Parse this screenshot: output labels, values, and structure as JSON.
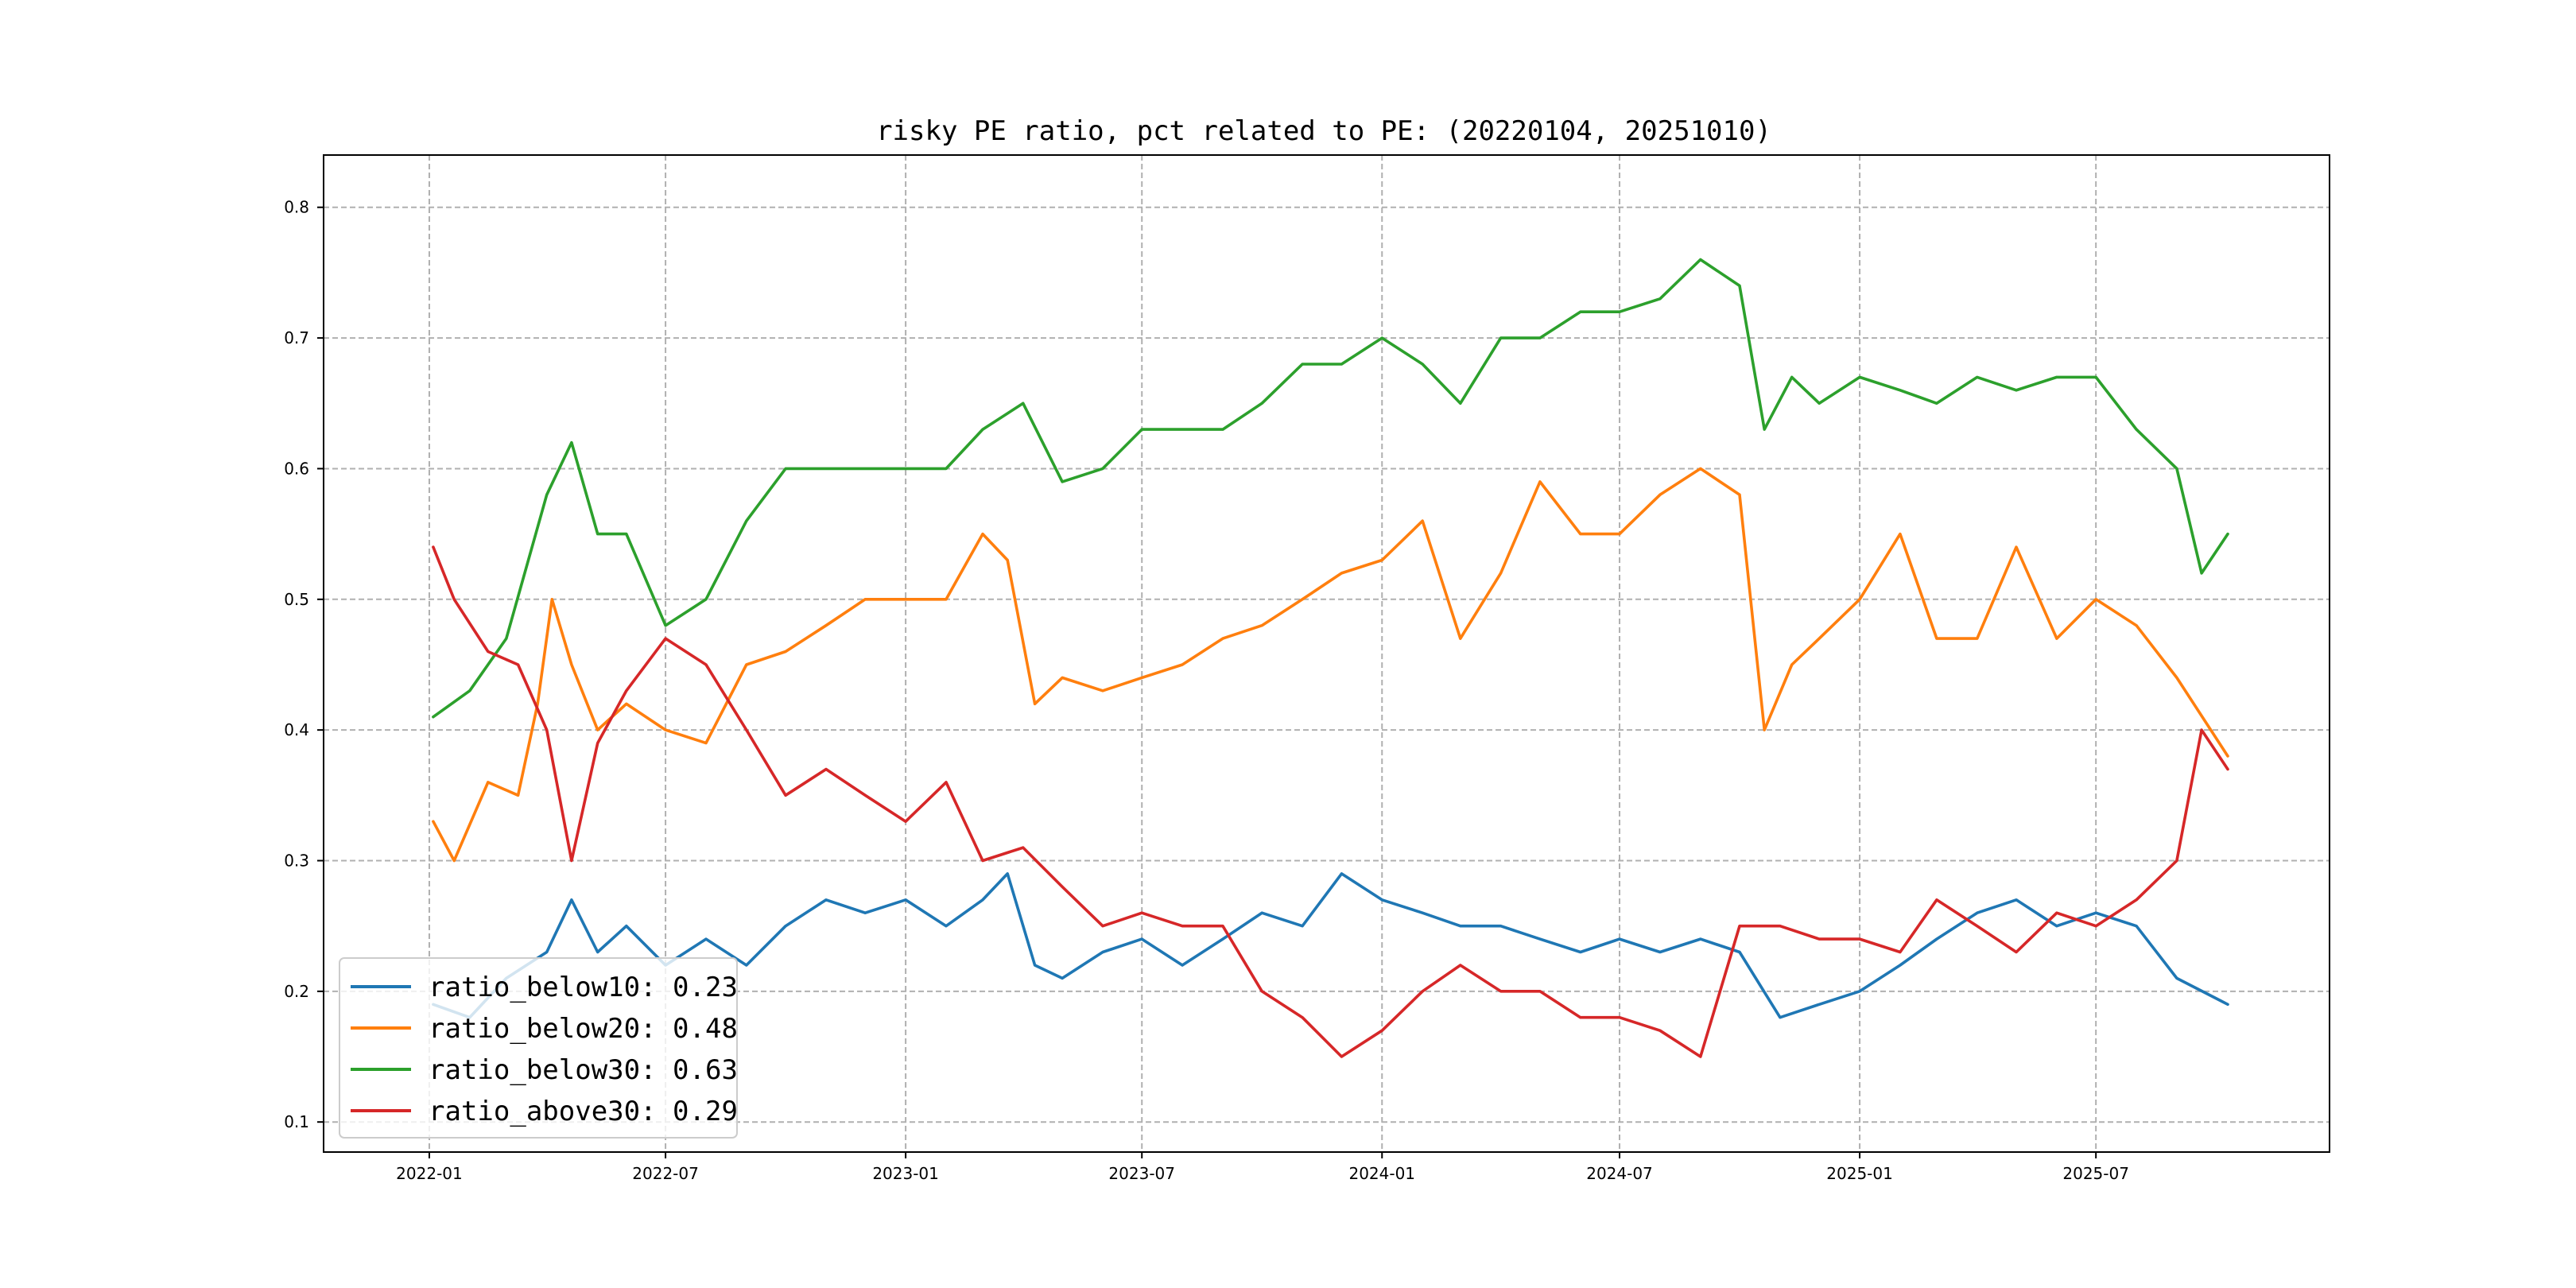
{
  "chart_data": {
    "type": "line",
    "title": "risky PE ratio, pct related to PE: (20220104, 20251010)",
    "xlabel": "",
    "ylabel": "",
    "grid": true,
    "legend_position": "lower-left",
    "xlim": [
      "2021-10-12",
      "2025-12-27"
    ],
    "ylim": [
      0.077,
      0.84
    ],
    "x_ticks": [
      "2022-01",
      "2022-07",
      "2023-01",
      "2023-07",
      "2024-01",
      "2024-07",
      "2025-01",
      "2025-07"
    ],
    "y_ticks": [
      "0.1",
      "0.2",
      "0.3",
      "0.4",
      "0.5",
      "0.6",
      "0.7",
      "0.8"
    ],
    "series": [
      {
        "name": "ratio_below10",
        "legend_label": "ratio_below10: 0.23",
        "color": "#1f77b4",
        "points": [
          [
            "2022-01-04",
            0.19
          ],
          [
            "2022-02-01",
            0.18
          ],
          [
            "2022-03-01",
            0.21
          ],
          [
            "2022-04-01",
            0.23
          ],
          [
            "2022-04-20",
            0.27
          ],
          [
            "2022-05-10",
            0.23
          ],
          [
            "2022-06-01",
            0.25
          ],
          [
            "2022-07-01",
            0.22
          ],
          [
            "2022-08-01",
            0.24
          ],
          [
            "2022-09-01",
            0.22
          ],
          [
            "2022-10-01",
            0.25
          ],
          [
            "2022-11-01",
            0.27
          ],
          [
            "2022-12-01",
            0.26
          ],
          [
            "2023-01-01",
            0.27
          ],
          [
            "2023-02-01",
            0.25
          ],
          [
            "2023-03-01",
            0.27
          ],
          [
            "2023-03-20",
            0.29
          ],
          [
            "2023-04-10",
            0.22
          ],
          [
            "2023-05-01",
            0.21
          ],
          [
            "2023-06-01",
            0.23
          ],
          [
            "2023-07-01",
            0.24
          ],
          [
            "2023-08-01",
            0.22
          ],
          [
            "2023-09-01",
            0.24
          ],
          [
            "2023-10-01",
            0.26
          ],
          [
            "2023-11-01",
            0.25
          ],
          [
            "2023-12-01",
            0.29
          ],
          [
            "2024-01-01",
            0.27
          ],
          [
            "2024-02-01",
            0.26
          ],
          [
            "2024-03-01",
            0.25
          ],
          [
            "2024-04-01",
            0.25
          ],
          [
            "2024-05-01",
            0.24
          ],
          [
            "2024-06-01",
            0.23
          ],
          [
            "2024-07-01",
            0.24
          ],
          [
            "2024-08-01",
            0.23
          ],
          [
            "2024-09-01",
            0.24
          ],
          [
            "2024-10-01",
            0.23
          ],
          [
            "2024-11-01",
            0.18
          ],
          [
            "2024-12-01",
            0.19
          ],
          [
            "2025-01-01",
            0.2
          ],
          [
            "2025-02-01",
            0.22
          ],
          [
            "2025-03-01",
            0.24
          ],
          [
            "2025-04-01",
            0.26
          ],
          [
            "2025-05-01",
            0.27
          ],
          [
            "2025-06-01",
            0.25
          ],
          [
            "2025-07-01",
            0.26
          ],
          [
            "2025-08-01",
            0.25
          ],
          [
            "2025-09-01",
            0.21
          ],
          [
            "2025-10-10",
            0.19
          ]
        ]
      },
      {
        "name": "ratio_below20",
        "legend_label": "ratio_below20: 0.48",
        "color": "#ff7f0e",
        "points": [
          [
            "2022-01-04",
            0.33
          ],
          [
            "2022-01-20",
            0.3
          ],
          [
            "2022-02-15",
            0.36
          ],
          [
            "2022-03-10",
            0.35
          ],
          [
            "2022-03-25",
            0.42
          ],
          [
            "2022-04-05",
            0.5
          ],
          [
            "2022-04-20",
            0.45
          ],
          [
            "2022-05-10",
            0.4
          ],
          [
            "2022-06-01",
            0.42
          ],
          [
            "2022-07-01",
            0.4
          ],
          [
            "2022-08-01",
            0.39
          ],
          [
            "2022-09-01",
            0.45
          ],
          [
            "2022-10-01",
            0.46
          ],
          [
            "2022-11-01",
            0.48
          ],
          [
            "2022-12-01",
            0.5
          ],
          [
            "2023-01-01",
            0.5
          ],
          [
            "2023-02-01",
            0.5
          ],
          [
            "2023-03-01",
            0.55
          ],
          [
            "2023-03-20",
            0.53
          ],
          [
            "2023-04-10",
            0.42
          ],
          [
            "2023-05-01",
            0.44
          ],
          [
            "2023-06-01",
            0.43
          ],
          [
            "2023-07-01",
            0.44
          ],
          [
            "2023-08-01",
            0.45
          ],
          [
            "2023-09-01",
            0.47
          ],
          [
            "2023-10-01",
            0.48
          ],
          [
            "2023-11-01",
            0.5
          ],
          [
            "2023-12-01",
            0.52
          ],
          [
            "2024-01-01",
            0.53
          ],
          [
            "2024-02-01",
            0.56
          ],
          [
            "2024-03-01",
            0.47
          ],
          [
            "2024-04-01",
            0.52
          ],
          [
            "2024-05-01",
            0.59
          ],
          [
            "2024-06-01",
            0.55
          ],
          [
            "2024-07-01",
            0.55
          ],
          [
            "2024-08-01",
            0.58
          ],
          [
            "2024-09-01",
            0.6
          ],
          [
            "2024-10-01",
            0.58
          ],
          [
            "2024-10-20",
            0.4
          ],
          [
            "2024-11-10",
            0.45
          ],
          [
            "2024-12-01",
            0.47
          ],
          [
            "2025-01-01",
            0.5
          ],
          [
            "2025-02-01",
            0.55
          ],
          [
            "2025-03-01",
            0.47
          ],
          [
            "2025-04-01",
            0.47
          ],
          [
            "2025-05-01",
            0.54
          ],
          [
            "2025-06-01",
            0.47
          ],
          [
            "2025-07-01",
            0.5
          ],
          [
            "2025-08-01",
            0.48
          ],
          [
            "2025-09-01",
            0.44
          ],
          [
            "2025-10-10",
            0.38
          ]
        ]
      },
      {
        "name": "ratio_below30",
        "legend_label": "ratio_below30: 0.63",
        "color": "#2ca02c",
        "points": [
          [
            "2022-01-04",
            0.41
          ],
          [
            "2022-02-01",
            0.43
          ],
          [
            "2022-03-01",
            0.47
          ],
          [
            "2022-04-01",
            0.58
          ],
          [
            "2022-04-20",
            0.62
          ],
          [
            "2022-05-10",
            0.55
          ],
          [
            "2022-06-01",
            0.55
          ],
          [
            "2022-07-01",
            0.48
          ],
          [
            "2022-08-01",
            0.5
          ],
          [
            "2022-09-01",
            0.56
          ],
          [
            "2022-10-01",
            0.6
          ],
          [
            "2022-11-01",
            0.6
          ],
          [
            "2022-12-01",
            0.6
          ],
          [
            "2023-01-01",
            0.6
          ],
          [
            "2023-02-01",
            0.6
          ],
          [
            "2023-03-01",
            0.63
          ],
          [
            "2023-04-01",
            0.65
          ],
          [
            "2023-05-01",
            0.59
          ],
          [
            "2023-06-01",
            0.6
          ],
          [
            "2023-07-01",
            0.63
          ],
          [
            "2023-08-01",
            0.63
          ],
          [
            "2023-09-01",
            0.63
          ],
          [
            "2023-10-01",
            0.65
          ],
          [
            "2023-11-01",
            0.68
          ],
          [
            "2023-12-01",
            0.68
          ],
          [
            "2024-01-01",
            0.7
          ],
          [
            "2024-02-01",
            0.68
          ],
          [
            "2024-03-01",
            0.65
          ],
          [
            "2024-04-01",
            0.7
          ],
          [
            "2024-05-01",
            0.7
          ],
          [
            "2024-06-01",
            0.72
          ],
          [
            "2024-07-01",
            0.72
          ],
          [
            "2024-08-01",
            0.73
          ],
          [
            "2024-09-01",
            0.76
          ],
          [
            "2024-10-01",
            0.74
          ],
          [
            "2024-10-20",
            0.63
          ],
          [
            "2024-11-10",
            0.67
          ],
          [
            "2024-12-01",
            0.65
          ],
          [
            "2025-01-01",
            0.67
          ],
          [
            "2025-02-01",
            0.66
          ],
          [
            "2025-03-01",
            0.65
          ],
          [
            "2025-04-01",
            0.67
          ],
          [
            "2025-05-01",
            0.66
          ],
          [
            "2025-06-01",
            0.67
          ],
          [
            "2025-07-01",
            0.67
          ],
          [
            "2025-08-01",
            0.63
          ],
          [
            "2025-09-01",
            0.6
          ],
          [
            "2025-09-20",
            0.52
          ],
          [
            "2025-10-10",
            0.55
          ]
        ]
      },
      {
        "name": "ratio_above30",
        "legend_label": "ratio_above30: 0.29",
        "color": "#d62728",
        "points": [
          [
            "2022-01-04",
            0.54
          ],
          [
            "2022-01-20",
            0.5
          ],
          [
            "2022-02-15",
            0.46
          ],
          [
            "2022-03-10",
            0.45
          ],
          [
            "2022-04-01",
            0.4
          ],
          [
            "2022-04-20",
            0.3
          ],
          [
            "2022-05-10",
            0.39
          ],
          [
            "2022-06-01",
            0.43
          ],
          [
            "2022-07-01",
            0.47
          ],
          [
            "2022-08-01",
            0.45
          ],
          [
            "2022-09-01",
            0.4
          ],
          [
            "2022-10-01",
            0.35
          ],
          [
            "2022-11-01",
            0.37
          ],
          [
            "2022-12-01",
            0.35
          ],
          [
            "2023-01-01",
            0.33
          ],
          [
            "2023-02-01",
            0.36
          ],
          [
            "2023-03-01",
            0.3
          ],
          [
            "2023-04-01",
            0.31
          ],
          [
            "2023-05-01",
            0.28
          ],
          [
            "2023-06-01",
            0.25
          ],
          [
            "2023-07-01",
            0.26
          ],
          [
            "2023-08-01",
            0.25
          ],
          [
            "2023-09-01",
            0.25
          ],
          [
            "2023-10-01",
            0.2
          ],
          [
            "2023-11-01",
            0.18
          ],
          [
            "2023-12-01",
            0.15
          ],
          [
            "2024-01-01",
            0.17
          ],
          [
            "2024-02-01",
            0.2
          ],
          [
            "2024-03-01",
            0.22
          ],
          [
            "2024-04-01",
            0.2
          ],
          [
            "2024-05-01",
            0.2
          ],
          [
            "2024-06-01",
            0.18
          ],
          [
            "2024-07-01",
            0.18
          ],
          [
            "2024-08-01",
            0.17
          ],
          [
            "2024-09-01",
            0.15
          ],
          [
            "2024-10-01",
            0.25
          ],
          [
            "2024-11-01",
            0.25
          ],
          [
            "2024-12-01",
            0.24
          ],
          [
            "2025-01-01",
            0.24
          ],
          [
            "2025-02-01",
            0.23
          ],
          [
            "2025-03-01",
            0.27
          ],
          [
            "2025-04-01",
            0.25
          ],
          [
            "2025-05-01",
            0.23
          ],
          [
            "2025-06-01",
            0.26
          ],
          [
            "2025-07-01",
            0.25
          ],
          [
            "2025-08-01",
            0.27
          ],
          [
            "2025-09-01",
            0.3
          ],
          [
            "2025-09-20",
            0.4
          ],
          [
            "2025-10-10",
            0.37
          ]
        ]
      }
    ]
  }
}
